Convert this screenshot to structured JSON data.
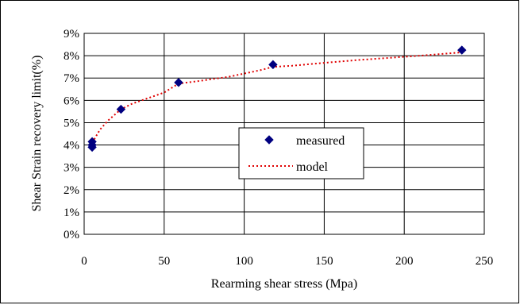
{
  "chart_data": {
    "type": "scatter",
    "title": "",
    "xlabel": "Rearming shear stress (Mpa)",
    "ylabel": "Shear Strain recovery limit(%)",
    "xlim": [
      0,
      250
    ],
    "ylim": [
      0,
      9
    ],
    "x_ticks": [
      0,
      50,
      100,
      150,
      200,
      250
    ],
    "y_ticks": [
      0,
      1,
      2,
      3,
      4,
      5,
      6,
      7,
      8,
      9
    ],
    "y_tick_suffix": "%",
    "grid": true,
    "legend_position": "center-right",
    "series": [
      {
        "name": "measured",
        "kind": "scatter",
        "marker": "diamond",
        "color": "#000080",
        "x": [
          5,
          5,
          5,
          23,
          59,
          118,
          236
        ],
        "y": [
          3.9,
          4.0,
          4.15,
          5.6,
          6.8,
          7.6,
          8.25
        ]
      },
      {
        "name": "model",
        "kind": "line",
        "style": "dotted",
        "color": "#e00000",
        "x": [
          5,
          10,
          15,
          23,
          30,
          40,
          50,
          59,
          70,
          80,
          90,
          100,
          110,
          118,
          130,
          150,
          170,
          190,
          210,
          236
        ],
        "y": [
          4.1,
          4.7,
          5.1,
          5.6,
          5.85,
          6.1,
          6.35,
          6.75,
          6.85,
          6.95,
          7.05,
          7.2,
          7.35,
          7.5,
          7.55,
          7.68,
          7.8,
          7.9,
          8.0,
          8.15
        ]
      }
    ]
  }
}
